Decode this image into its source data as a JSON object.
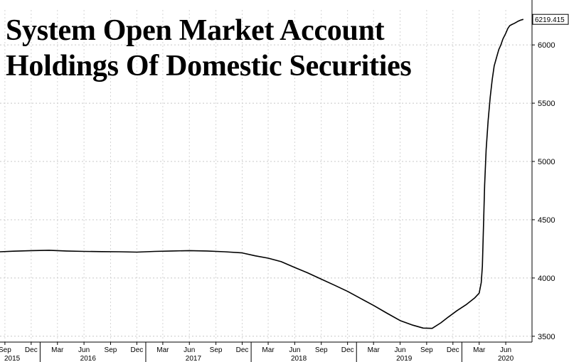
{
  "chart_data": {
    "type": "line",
    "title": [
      "System Open Market Account",
      "Holdings Of Domestic Securities"
    ],
    "last_value_label": "6219.415",
    "yticks": [
      3500,
      4000,
      4500,
      5000,
      5500,
      6000
    ],
    "ylim": [
      3450,
      6300
    ],
    "xlim": [
      "2015-08-15",
      "2020-08-31"
    ],
    "x_month_ticks": [
      {
        "date": "2015-09-01",
        "label": "Sep"
      },
      {
        "date": "2015-12-01",
        "label": "Dec"
      },
      {
        "date": "2016-03-01",
        "label": "Mar"
      },
      {
        "date": "2016-06-01",
        "label": "Jun"
      },
      {
        "date": "2016-09-01",
        "label": "Sep"
      },
      {
        "date": "2016-12-01",
        "label": "Dec"
      },
      {
        "date": "2017-03-01",
        "label": "Mar"
      },
      {
        "date": "2017-06-01",
        "label": "Jun"
      },
      {
        "date": "2017-09-01",
        "label": "Sep"
      },
      {
        "date": "2017-12-01",
        "label": "Dec"
      },
      {
        "date": "2018-03-01",
        "label": "Mar"
      },
      {
        "date": "2018-06-01",
        "label": "Jun"
      },
      {
        "date": "2018-09-01",
        "label": "Sep"
      },
      {
        "date": "2018-12-01",
        "label": "Dec"
      },
      {
        "date": "2019-03-01",
        "label": "Mar"
      },
      {
        "date": "2019-06-01",
        "label": "Jun"
      },
      {
        "date": "2019-09-01",
        "label": "Sep"
      },
      {
        "date": "2019-12-01",
        "label": "Dec"
      },
      {
        "date": "2020-03-01",
        "label": "Mar"
      },
      {
        "date": "2020-06-01",
        "label": "Jun"
      }
    ],
    "x_year_ticks": [
      {
        "date": "2015-08-20",
        "label": "2015"
      },
      {
        "date": "2016-06-15",
        "label": "2016"
      },
      {
        "date": "2017-06-15",
        "label": "2017"
      },
      {
        "date": "2018-06-15",
        "label": "2018"
      },
      {
        "date": "2019-06-15",
        "label": "2019"
      },
      {
        "date": "2020-06-01",
        "label": "2020"
      }
    ],
    "series": [
      {
        "color": "#000000",
        "points": [
          [
            "2015-08-15",
            4225
          ],
          [
            "2015-10-01",
            4230
          ],
          [
            "2015-12-01",
            4235
          ],
          [
            "2016-02-01",
            4238
          ],
          [
            "2016-04-01",
            4232
          ],
          [
            "2016-06-01",
            4228
          ],
          [
            "2016-08-01",
            4226
          ],
          [
            "2016-10-01",
            4225
          ],
          [
            "2016-12-01",
            4222
          ],
          [
            "2017-02-01",
            4228
          ],
          [
            "2017-04-01",
            4232
          ],
          [
            "2017-06-01",
            4235
          ],
          [
            "2017-08-01",
            4232
          ],
          [
            "2017-10-01",
            4225
          ],
          [
            "2017-12-01",
            4215
          ],
          [
            "2018-01-15",
            4190
          ],
          [
            "2018-03-01",
            4170
          ],
          [
            "2018-04-15",
            4140
          ],
          [
            "2018-06-01",
            4090
          ],
          [
            "2018-07-15",
            4045
          ],
          [
            "2018-09-01",
            3990
          ],
          [
            "2018-10-15",
            3940
          ],
          [
            "2018-12-01",
            3885
          ],
          [
            "2019-01-15",
            3825
          ],
          [
            "2019-03-01",
            3765
          ],
          [
            "2019-04-15",
            3700
          ],
          [
            "2019-06-01",
            3635
          ],
          [
            "2019-07-15",
            3595
          ],
          [
            "2019-08-20",
            3570
          ],
          [
            "2019-09-20",
            3568
          ],
          [
            "2019-10-20",
            3615
          ],
          [
            "2019-11-15",
            3665
          ],
          [
            "2019-12-15",
            3720
          ],
          [
            "2020-01-15",
            3770
          ],
          [
            "2020-02-15",
            3830
          ],
          [
            "2020-03-01",
            3870
          ],
          [
            "2020-03-08",
            3960
          ],
          [
            "2020-03-12",
            4100
          ],
          [
            "2020-03-16",
            4450
          ],
          [
            "2020-03-20",
            4800
          ],
          [
            "2020-03-25",
            5100
          ],
          [
            "2020-04-01",
            5350
          ],
          [
            "2020-04-08",
            5550
          ],
          [
            "2020-04-15",
            5700
          ],
          [
            "2020-04-22",
            5820
          ],
          [
            "2020-05-01",
            5900
          ],
          [
            "2020-05-08",
            5960
          ],
          [
            "2020-05-15",
            6000
          ],
          [
            "2020-05-22",
            6050
          ],
          [
            "2020-06-01",
            6100
          ],
          [
            "2020-06-08",
            6140
          ],
          [
            "2020-06-15",
            6165
          ],
          [
            "2020-06-22",
            6175
          ],
          [
            "2020-07-01",
            6185
          ],
          [
            "2020-07-08",
            6195
          ],
          [
            "2020-07-15",
            6205
          ],
          [
            "2020-07-22",
            6212
          ],
          [
            "2020-08-01",
            6219.415
          ]
        ]
      }
    ]
  }
}
